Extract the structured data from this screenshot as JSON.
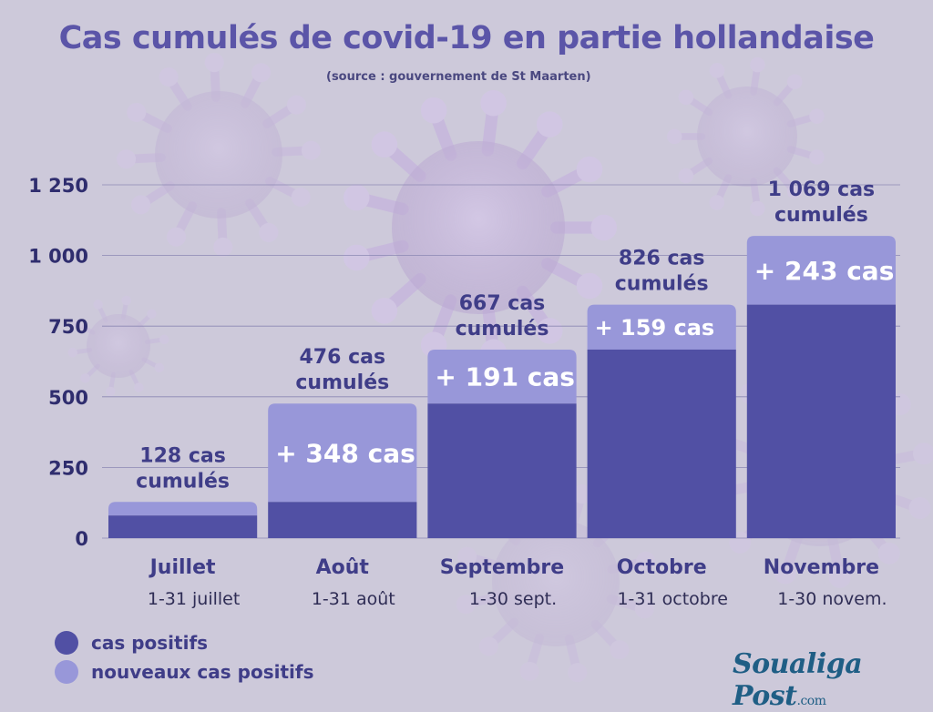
{
  "header": {
    "title": "Cas cumulés de covid-19 en partie hollandaise",
    "source": "(source : gouvernement de St Maarten)"
  },
  "colors": {
    "positive": "#5150a4",
    "new_positive": "#9897d9",
    "title": "#5b55a8",
    "axis_text": "#2f2d6e",
    "brand": "#1f5e85"
  },
  "legend": {
    "items": [
      {
        "label": "cas positifs",
        "color": "#5150a4"
      },
      {
        "label": "nouveaux cas positifs",
        "color": "#9897d9"
      }
    ]
  },
  "brand": {
    "name": "Soualiga Post",
    "suffix": ".com"
  },
  "chart_data": {
    "type": "bar",
    "stacked": true,
    "categories": [
      "Juillet",
      "Août",
      "Septembre",
      "Octobre",
      "Novembre"
    ],
    "sublabels": [
      "1-31 juillet",
      "1-31 août",
      "1-30 sept.",
      "1-31 octobre",
      "1-30 novem."
    ],
    "series": [
      {
        "name": "cas positifs",
        "values": [
          80,
          128,
          476,
          667,
          826
        ]
      },
      {
        "name": "nouveaux cas positifs",
        "values": [
          48,
          348,
          191,
          159,
          243
        ]
      }
    ],
    "totals": [
      128,
      476,
      667,
      826,
      1069
    ],
    "total_labels": [
      [
        "128 cas",
        "cumulés"
      ],
      [
        "476 cas",
        "cumulés"
      ],
      [
        "667 cas",
        "cumulés"
      ],
      [
        "826 cas",
        "cumulés"
      ],
      [
        "1 069 cas",
        "cumulés"
      ]
    ],
    "increment_labels": [
      "",
      "+  348 cas",
      "+  191 cas",
      "+  159 cas",
      "+  243 cas"
    ],
    "yticks": [
      0,
      250,
      500,
      750,
      1000,
      1250
    ],
    "ytick_labels": [
      "0",
      "250",
      "500",
      "750",
      "1 000",
      "1 250"
    ],
    "ylim": [
      0,
      1250
    ],
    "grid": true,
    "legend_position": "bottom-left",
    "xlabel": "",
    "ylabel": ""
  }
}
